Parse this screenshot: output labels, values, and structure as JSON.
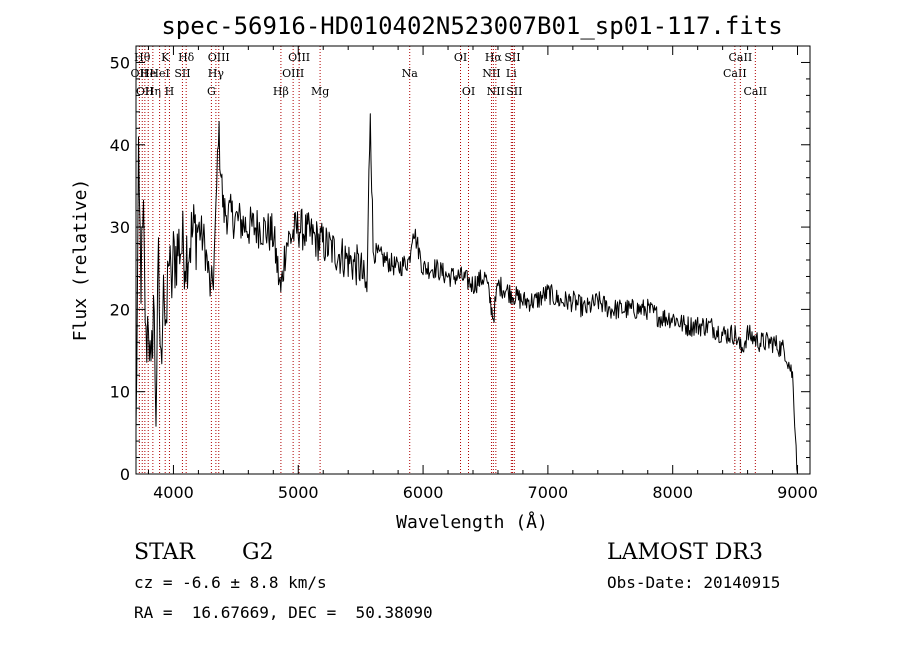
{
  "chart_data": {
    "type": "line",
    "title": "spec-56916-HD010402N523007B01_sp01-117.fits",
    "xlabel": "Wavelength (Å)",
    "ylabel": "Flux (relative)",
    "xlim": [
      3700,
      9100
    ],
    "ylim": [
      0,
      52
    ],
    "xticks": [
      "4000",
      "5000",
      "6000",
      "7000",
      "8000",
      "9000"
    ],
    "yticks": [
      "0",
      "10",
      "20",
      "30",
      "40",
      "50"
    ],
    "series": [
      {
        "name": "flux",
        "x": [
          3700,
          3720,
          3740,
          3760,
          3780,
          3800,
          3820,
          3840,
          3860,
          3880,
          3900,
          3920,
          3940,
          3960,
          3980,
          4000,
          4050,
          4100,
          4150,
          4200,
          4250,
          4300,
          4320,
          4340,
          4360,
          4400,
          4500,
          4600,
          4700,
          4800,
          4860,
          4900,
          5000,
          5100,
          5200,
          5300,
          5400,
          5500,
          5550,
          5577,
          5600,
          5700,
          5800,
          5890,
          5920,
          6000,
          6100,
          6200,
          6300,
          6400,
          6500,
          6563,
          6600,
          6700,
          6800,
          6900,
          7000,
          7100,
          7200,
          7300,
          7400,
          7500,
          7600,
          7700,
          7800,
          7900,
          8000,
          8100,
          8200,
          8300,
          8400,
          8500,
          8550,
          8600,
          8700,
          8800,
          8900,
          8960,
          9000
        ],
        "y": [
          4,
          36,
          24,
          30,
          15,
          20,
          10,
          22,
          8,
          25,
          12,
          26,
          14,
          28,
          22,
          26,
          28,
          27,
          29,
          30,
          28,
          22,
          24,
          31,
          42,
          32,
          31,
          30,
          30,
          29,
          22,
          28,
          30,
          29,
          28,
          27,
          26,
          25,
          22,
          45,
          27,
          26,
          25,
          26,
          30,
          25,
          25,
          24,
          24,
          23,
          24,
          19,
          23,
          22,
          21,
          21,
          22,
          21,
          21,
          20,
          21,
          20,
          20,
          20,
          20,
          19,
          19,
          18,
          18,
          18,
          17,
          17,
          15,
          17,
          16,
          16,
          15,
          12,
          0
        ]
      }
    ],
    "spectral_lines": [
      {
        "w": 3727,
        "label": "OII",
        "row": 2
      },
      {
        "w": 3750,
        "label": "Hθ",
        "row": 1
      },
      {
        "w": 3771,
        "label": "OII",
        "row": 3
      },
      {
        "w": 3798,
        "label": "He",
        "row": 2
      },
      {
        "w": 3835,
        "label": "Hη",
        "row": 3
      },
      {
        "w": 3889,
        "label": "HeI",
        "row": 2
      },
      {
        "w": 3934,
        "label": "K",
        "row": 1
      },
      {
        "w": 3968,
        "label": "H",
        "row": 3
      },
      {
        "w": 4072,
        "label": "SII",
        "row": 2
      },
      {
        "w": 4102,
        "label": "Hδ",
        "row": 1
      },
      {
        "w": 4304,
        "label": "G",
        "row": 3
      },
      {
        "w": 4340,
        "label": "Hγ",
        "row": 2
      },
      {
        "w": 4363,
        "label": "OIII",
        "row": 1
      },
      {
        "w": 4861,
        "label": "Hβ",
        "row": 3
      },
      {
        "w": 4959,
        "label": "OIII",
        "row": 2
      },
      {
        "w": 5007,
        "label": "OIII",
        "row": 1
      },
      {
        "w": 5175,
        "label": "Mg",
        "row": 3
      },
      {
        "w": 5893,
        "label": "Na",
        "row": 2
      },
      {
        "w": 6300,
        "label": "OI",
        "row": 1
      },
      {
        "w": 6364,
        "label": "OI",
        "row": 3
      },
      {
        "w": 6548,
        "label": "NII",
        "row": 2
      },
      {
        "w": 6563,
        "label": "Hα",
        "row": 1
      },
      {
        "w": 6583,
        "label": "NII",
        "row": 3
      },
      {
        "w": 6707,
        "label": "Li",
        "row": 2
      },
      {
        "w": 6716,
        "label": "SII",
        "row": 1
      },
      {
        "w": 6731,
        "label": "SII",
        "row": 3
      },
      {
        "w": 8498,
        "label": "CaII",
        "row": 2
      },
      {
        "w": 8542,
        "label": "CaII",
        "row": 1
      },
      {
        "w": 8662,
        "label": "CaII",
        "row": 3
      }
    ]
  },
  "info": {
    "object_class": "STAR",
    "subclass": "G2",
    "survey": "LAMOST DR3",
    "cz": "cz = -6.6 ± 8.8 km/s",
    "obs_date": "Obs-Date: 20140915",
    "coords": "RA =  16.67669, DEC =  50.38090"
  }
}
